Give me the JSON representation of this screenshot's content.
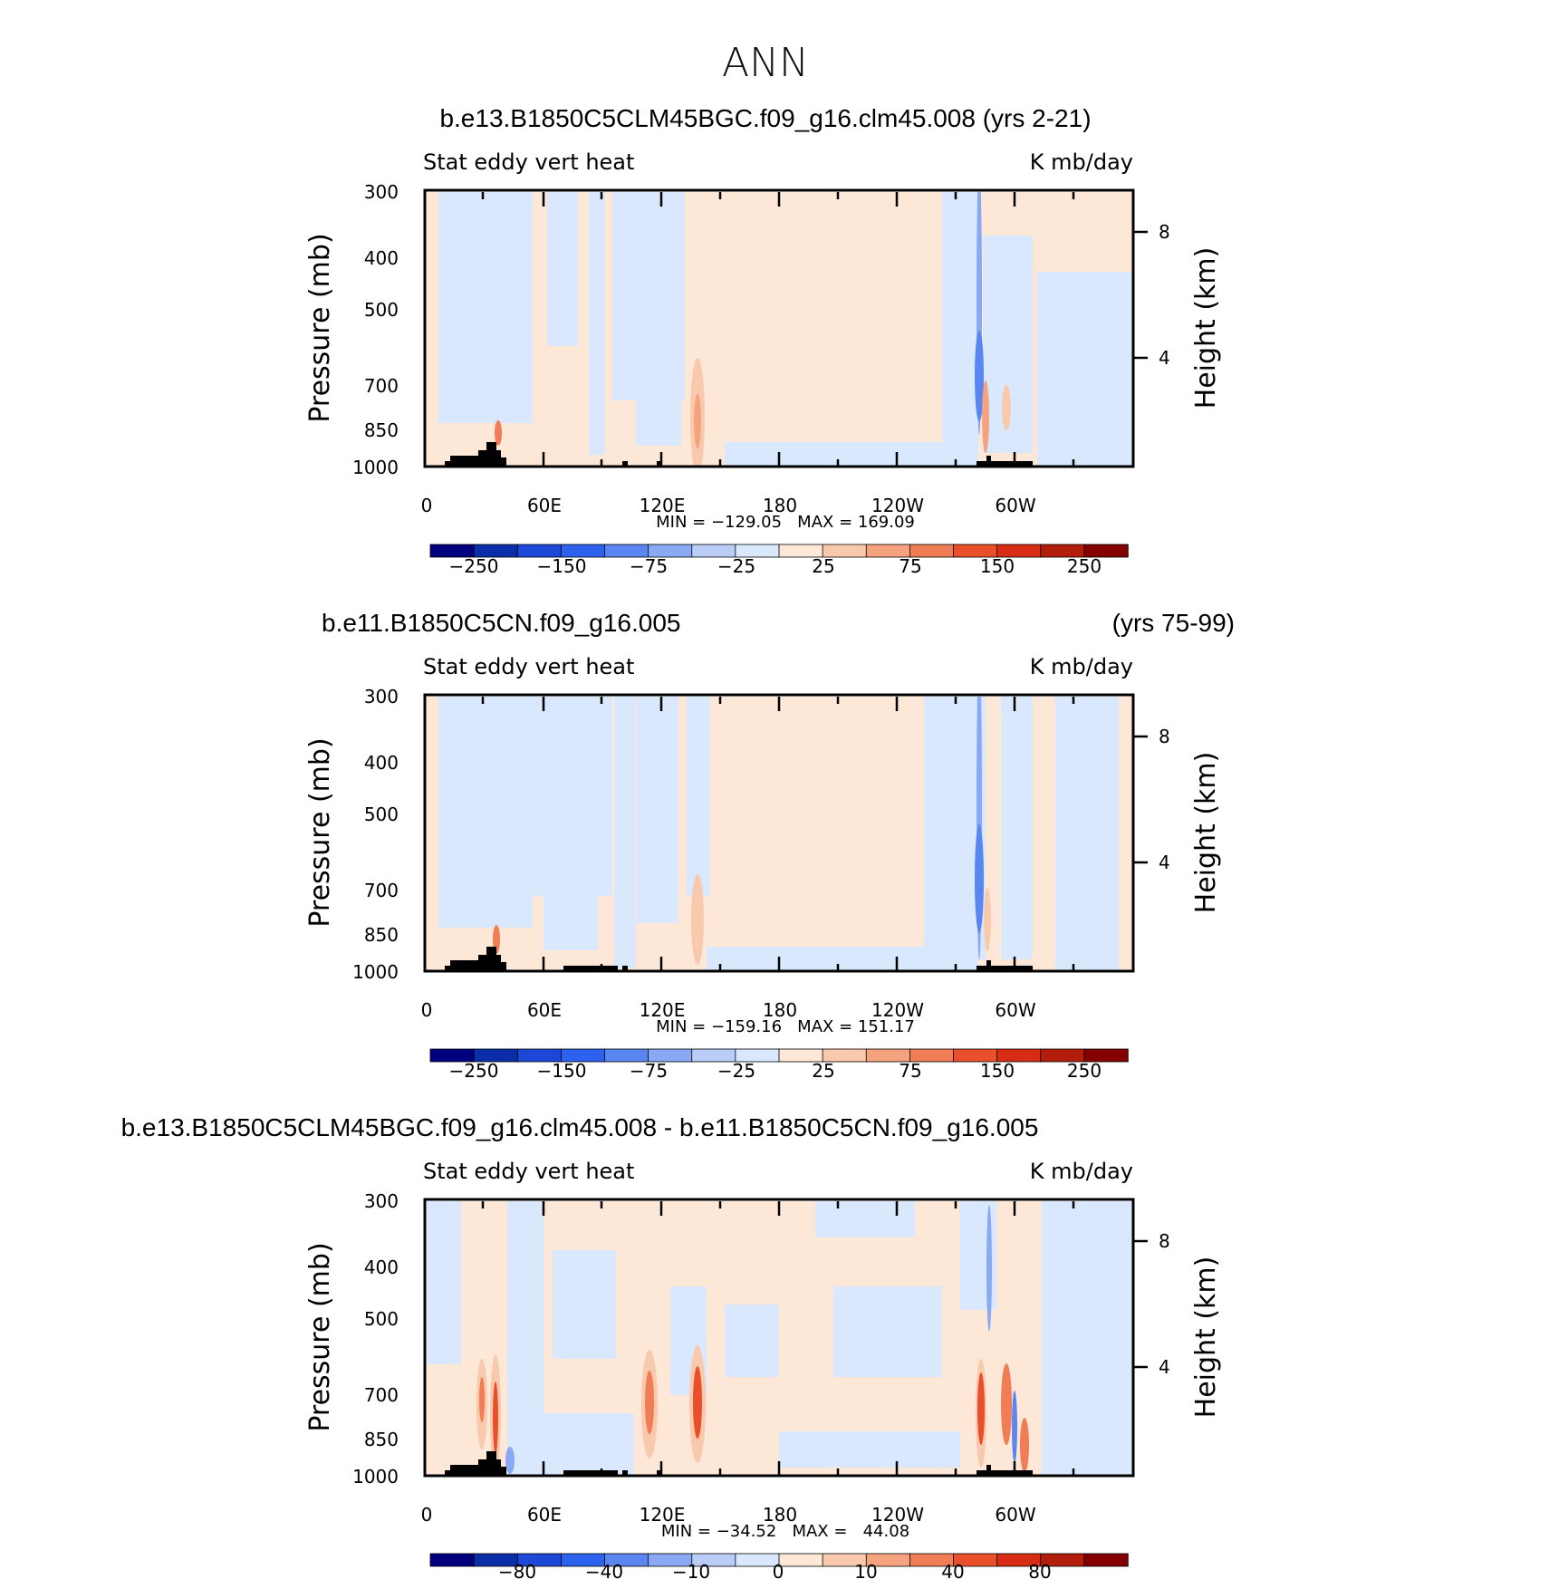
{
  "page": {
    "main_title": "ANN"
  },
  "colors": {
    "palette_left_to_right": [
      "#00007f",
      "#0a2ea8",
      "#1b48d6",
      "#2c62ee",
      "#5a86f2",
      "#8aa9f4",
      "#b9cdf7",
      "#d9e8fc",
      "#fde8d8",
      "#f9c9ae",
      "#f5a37f",
      "#f07d55",
      "#ea4f2c",
      "#d82c14",
      "#b31e0c",
      "#850000"
    ],
    "land_mask": "#000000"
  },
  "chart_data": [
    {
      "type": "heatmap",
      "title": "b.e13.B1850C5CLM45BGC.f09_g16.clm45.008 (yrs 2-21)",
      "title_left": "",
      "title_right": "",
      "left_label": "Stat eddy vert heat",
      "right_label": "K mb/day",
      "ylabel": "Pressure (mb)",
      "y2label": "Height (km)",
      "xticks": [
        "0",
        "60E",
        "120E",
        "180",
        "120W",
        "60W"
      ],
      "yticks": [
        "300",
        "400",
        "500",
        "700",
        "850",
        "1000"
      ],
      "y2ticks": [
        "8",
        "4"
      ],
      "xlim": [
        0,
        360
      ],
      "ylim": [
        1000,
        300
      ],
      "stats": "MIN = −129.05   MAX = 169.09",
      "min": -129.05,
      "max": 169.09,
      "colorbar_labels": [
        "−250",
        "−150",
        "−75",
        "−25",
        "25",
        "75",
        "150",
        "250"
      ],
      "features": "mostly weak positive (0 to 25) with weak negative (-25 to 0) bands; strong negative column near 85W; positive maxima near 140E and 90W at 700-850 mb"
    },
    {
      "type": "heatmap",
      "title": "",
      "title_left": "b.e11.B1850C5CN.f09_g16.005",
      "title_right": "(yrs 75-99)",
      "left_label": "Stat eddy vert heat",
      "right_label": "K mb/day",
      "ylabel": "Pressure (mb)",
      "y2label": "Height (km)",
      "xticks": [
        "0",
        "60E",
        "120E",
        "180",
        "120W",
        "60W"
      ],
      "yticks": [
        "300",
        "400",
        "500",
        "700",
        "850",
        "1000"
      ],
      "y2ticks": [
        "8",
        "4"
      ],
      "xlim": [
        0,
        360
      ],
      "ylim": [
        1000,
        300
      ],
      "stats": "MIN = −159.16   MAX = 151.17",
      "min": -159.16,
      "max": 151.17,
      "colorbar_labels": [
        "−250",
        "−150",
        "−75",
        "−25",
        "25",
        "75",
        "150",
        "250"
      ],
      "features": "similar pattern to first panel; strong negative column near 85W extending to 300 mb"
    },
    {
      "type": "heatmap",
      "title": "b.e13.B1850C5CLM45BGC.f09_g16.clm45.008 - b.e11.B1850C5CN.f09_g16.005",
      "title_left": "",
      "title_right": "",
      "left_label": "Stat eddy vert heat",
      "right_label": "K mb/day",
      "ylabel": "Pressure (mb)",
      "y2label": "Height (km)",
      "xticks": [
        "0",
        "60E",
        "120E",
        "180",
        "120W",
        "60W"
      ],
      "yticks": [
        "300",
        "400",
        "500",
        "700",
        "850",
        "1000"
      ],
      "y2ticks": [
        "8",
        "4"
      ],
      "xlim": [
        0,
        360
      ],
      "ylim": [
        1000,
        300
      ],
      "stats": "MIN = −34.52   MAX =   44.08",
      "min": -34.52,
      "max": 44.08,
      "colorbar_labels": [
        "−80",
        "−40",
        "−10",
        "0",
        "10",
        "40",
        "80"
      ],
      "features": "difference field: positive maxima near 30E, 115E, 140E, 80W, 60W at 700-850 mb; negative near 70W"
    }
  ]
}
